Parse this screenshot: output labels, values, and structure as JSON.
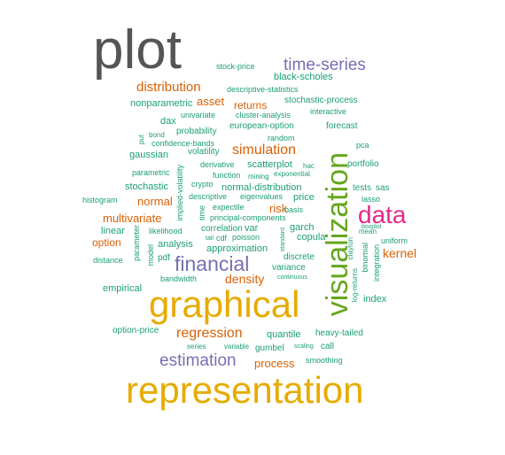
{
  "colors": {
    "gray": "#555555",
    "green": "#1b9e77",
    "orange": "#d95f02",
    "purple": "#7570b3",
    "magenta": "#e7298a",
    "lime": "#66a61e",
    "gold": "#e6ab02"
  },
  "words": [
    {
      "text": "plot",
      "color": "gray",
      "rank": 1
    },
    {
      "text": "representation",
      "color": "gold",
      "rank": 2
    },
    {
      "text": "graphical",
      "color": "gold",
      "rank": 3
    },
    {
      "text": "visualization",
      "color": "lime",
      "rank": 4
    },
    {
      "text": "data",
      "color": "magenta",
      "rank": 5
    },
    {
      "text": "financial",
      "color": "purple",
      "rank": 6
    },
    {
      "text": "estimation",
      "color": "purple",
      "rank": 7
    },
    {
      "text": "time-series",
      "color": "purple",
      "rank": 8
    },
    {
      "text": "regression",
      "color": "orange",
      "rank": 9
    },
    {
      "text": "simulation",
      "color": "orange",
      "rank": 10
    },
    {
      "text": "distribution",
      "color": "orange",
      "rank": 11
    },
    {
      "text": "multivariate",
      "color": "orange",
      "rank": 12
    },
    {
      "text": "density",
      "color": "orange",
      "rank": 13
    },
    {
      "text": "kernel",
      "color": "orange",
      "rank": 14
    },
    {
      "text": "process",
      "color": "orange",
      "rank": 15
    },
    {
      "text": "normal",
      "color": "orange",
      "rank": 16
    },
    {
      "text": "asset",
      "color": "orange",
      "rank": 17
    },
    {
      "text": "risk",
      "color": "orange",
      "rank": 18
    },
    {
      "text": "returns",
      "color": "orange",
      "rank": 19
    },
    {
      "text": "option",
      "color": "orange",
      "rank": 20
    },
    {
      "text": "copula",
      "color": "green",
      "rank": 21
    },
    {
      "text": "black-scholes",
      "color": "green",
      "rank": 22
    },
    {
      "text": "nonparametric",
      "color": "green",
      "rank": 23
    },
    {
      "text": "stock-price",
      "color": "green",
      "rank": 24
    },
    {
      "text": "descriptive-statistics",
      "color": "green",
      "rank": 25
    },
    {
      "text": "stochastic-process",
      "color": "green",
      "rank": 26
    },
    {
      "text": "cluster-analysis",
      "color": "green",
      "rank": 27
    },
    {
      "text": "interactive",
      "color": "green",
      "rank": 28
    },
    {
      "text": "european-option",
      "color": "green",
      "rank": 29
    },
    {
      "text": "forecast",
      "color": "green",
      "rank": 30
    },
    {
      "text": "dax",
      "color": "green",
      "rank": 31
    },
    {
      "text": "univariate",
      "color": "green",
      "rank": 32
    },
    {
      "text": "probability",
      "color": "green",
      "rank": 33
    },
    {
      "text": "bond",
      "color": "green",
      "rank": 34
    },
    {
      "text": "put",
      "color": "green",
      "rank": 35
    },
    {
      "text": "confidence-bands",
      "color": "green",
      "rank": 36
    },
    {
      "text": "random",
      "color": "green",
      "rank": 37
    },
    {
      "text": "pca",
      "color": "green",
      "rank": 38
    },
    {
      "text": "gaussian",
      "color": "green",
      "rank": 39
    },
    {
      "text": "volatility",
      "color": "green",
      "rank": 40
    },
    {
      "text": "derivative",
      "color": "green",
      "rank": 41
    },
    {
      "text": "scatterplot",
      "color": "green",
      "rank": 42
    },
    {
      "text": "hac",
      "color": "green",
      "rank": 43
    },
    {
      "text": "portfolio",
      "color": "green",
      "rank": 44
    },
    {
      "text": "parametric",
      "color": "green",
      "rank": 45
    },
    {
      "text": "function",
      "color": "green",
      "rank": 46
    },
    {
      "text": "mining",
      "color": "green",
      "rank": 47
    },
    {
      "text": "exponential",
      "color": "green",
      "rank": 48
    },
    {
      "text": "stochastic",
      "color": "green",
      "rank": 49
    },
    {
      "text": "crypto",
      "color": "green",
      "rank": 50
    },
    {
      "text": "normal-distribution",
      "color": "green",
      "rank": 51
    },
    {
      "text": "tests",
      "color": "green",
      "rank": 52
    },
    {
      "text": "sas",
      "color": "green",
      "rank": 53
    },
    {
      "text": "histogram",
      "color": "green",
      "rank": 54
    },
    {
      "text": "implied-volatility",
      "color": "green",
      "rank": 55
    },
    {
      "text": "descriptive",
      "color": "green",
      "rank": 56
    },
    {
      "text": "eigenvalues",
      "color": "green",
      "rank": 57
    },
    {
      "text": "price",
      "color": "green",
      "rank": 58
    },
    {
      "text": "lasso",
      "color": "green",
      "rank": 59
    },
    {
      "text": "time",
      "color": "green",
      "rank": 60
    },
    {
      "text": "expectile",
      "color": "green",
      "rank": 61
    },
    {
      "text": "basis",
      "color": "green",
      "rank": 62
    },
    {
      "text": "principal-components",
      "color": "green",
      "rank": 63
    },
    {
      "text": "linear",
      "color": "green",
      "rank": 64
    },
    {
      "text": "likelihood",
      "color": "green",
      "rank": 65
    },
    {
      "text": "correlation",
      "color": "green",
      "rank": 66
    },
    {
      "text": "var",
      "color": "green",
      "rank": 67
    },
    {
      "text": "garch",
      "color": "green",
      "rank": 68
    },
    {
      "text": "mean",
      "color": "green",
      "rank": 69
    },
    {
      "text": "tail",
      "color": "green",
      "rank": 70
    },
    {
      "text": "cdf",
      "color": "green",
      "rank": 71
    },
    {
      "text": "poisson",
      "color": "green",
      "rank": 72
    },
    {
      "text": "uniform",
      "color": "green",
      "rank": 73
    },
    {
      "text": "analysis",
      "color": "green",
      "rank": 74
    },
    {
      "text": "approximation",
      "color": "green",
      "rank": 75
    },
    {
      "text": "parameter",
      "color": "green",
      "rank": 76
    },
    {
      "text": "model",
      "color": "green",
      "rank": 77
    },
    {
      "text": "pdf",
      "color": "green",
      "rank": 78
    },
    {
      "text": "standard",
      "color": "green",
      "rank": 79
    },
    {
      "text": "discrete",
      "color": "green",
      "rank": 80
    },
    {
      "text": "clayton",
      "color": "green",
      "rank": 81
    },
    {
      "text": "binomial",
      "color": "green",
      "rank": 82
    },
    {
      "text": "integration",
      "color": "green",
      "rank": 83
    },
    {
      "text": "distance",
      "color": "green",
      "rank": 84
    },
    {
      "text": "variance",
      "color": "green",
      "rank": 85
    },
    {
      "text": "bandwidth",
      "color": "green",
      "rank": 86
    },
    {
      "text": "continuous",
      "color": "green",
      "rank": 87
    },
    {
      "text": "index",
      "color": "green",
      "rank": 88
    },
    {
      "text": "empirical",
      "color": "green",
      "rank": 89
    },
    {
      "text": "log-returns",
      "color": "green",
      "rank": 90
    },
    {
      "text": "option-price",
      "color": "green",
      "rank": 91
    },
    {
      "text": "quantile",
      "color": "green",
      "rank": 92
    },
    {
      "text": "heavy-tailed",
      "color": "green",
      "rank": 93
    },
    {
      "text": "boxplot",
      "color": "green",
      "rank": 94
    },
    {
      "text": "series",
      "color": "green",
      "rank": 95
    },
    {
      "text": "variable",
      "color": "green",
      "rank": 96
    },
    {
      "text": "gumbel",
      "color": "green",
      "rank": 97
    },
    {
      "text": "scaling",
      "color": "green",
      "rank": 98
    },
    {
      "text": "call",
      "color": "green",
      "rank": 99
    },
    {
      "text": "smoothing",
      "color": "green",
      "rank": 100
    }
  ]
}
